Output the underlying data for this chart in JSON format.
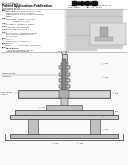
{
  "page_bg": "#ffffff",
  "dark": "#333333",
  "mid": "#888888",
  "light": "#cccccc",
  "lighter": "#dddddd",
  "diagram_bg": "#f8f8f8",
  "barcode_color": "#111111",
  "header_line_color": "#999999"
}
